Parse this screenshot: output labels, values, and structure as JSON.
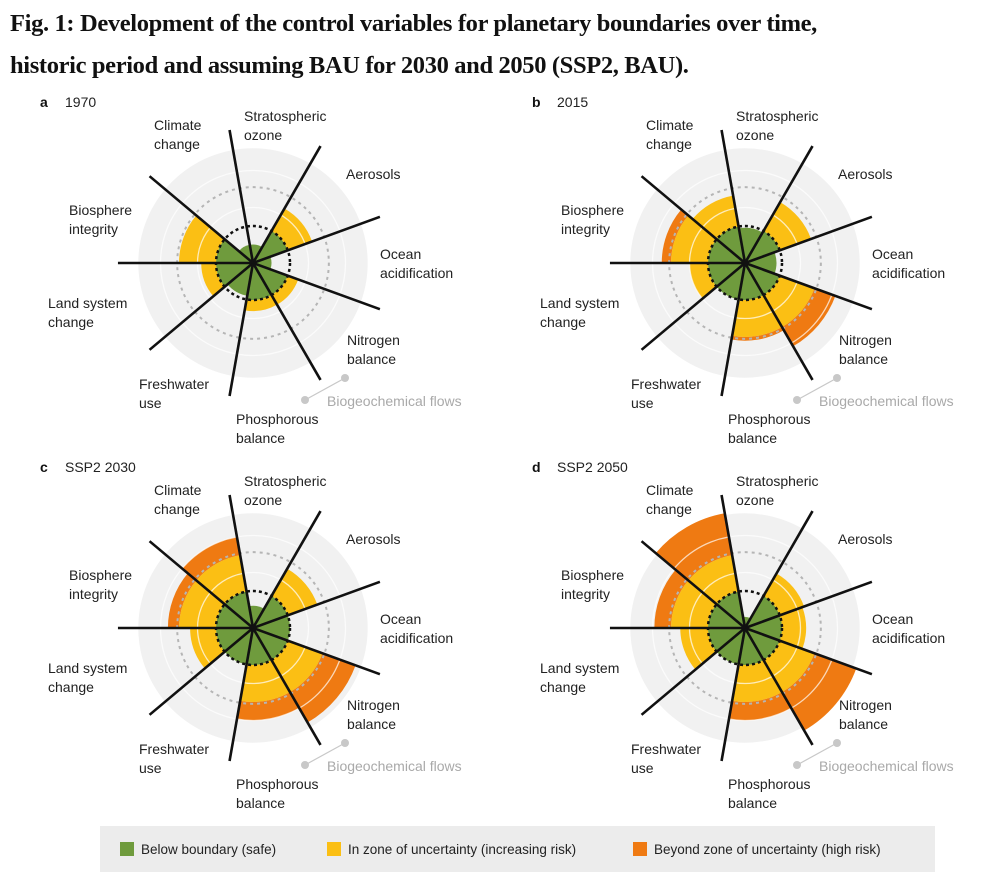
{
  "title": {
    "line1": "Fig. 1: Development of the control variables for planetary boundaries over time,",
    "line2": "historic period and assuming BAU for 2030 and 2050 (SSP2, BAU)."
  },
  "colors": {
    "safe": "#6f9b3d",
    "uncertainty": "#fbbf14",
    "high_risk": "#ef7a12",
    "background_disk": "#f1f1f1"
  },
  "legend": [
    {
      "label": "Below boundary (safe)",
      "color": "#6f9b3d"
    },
    {
      "label": "In zone of uncertainty (increasing risk)",
      "color": "#fbbf14"
    },
    {
      "label": "Beyond zone of uncertainty (high risk)",
      "color": "#ef7a12"
    }
  ],
  "group_label": "Biogeochemical flows",
  "categories": [
    [
      "Stratospheric",
      "ozone"
    ],
    [
      "Aerosols"
    ],
    [
      "Ocean",
      "acidification"
    ],
    [
      "Nitrogen",
      "balance"
    ],
    [
      "Phosphorous",
      "balance"
    ],
    [
      "Freshwater",
      "use"
    ],
    [
      "Land system",
      "change"
    ],
    [
      "Biosphere",
      "integrity"
    ],
    [
      "Climate",
      "change"
    ]
  ],
  "chart_data": [
    {
      "type": "polar-bar",
      "panel": "a",
      "title": "1970",
      "values": [
        0.5,
        1.7,
        0.5,
        1.3,
        1.3,
        0.9,
        1.4,
        2.0,
        0.5
      ]
    },
    {
      "type": "polar-bar",
      "panel": "b",
      "title": "2015",
      "values": [
        0.95,
        1.9,
        0.85,
        2.6,
        2.1,
        1.0,
        1.5,
        2.25,
        1.85
      ]
    },
    {
      "type": "polar-bar",
      "panel": "c",
      "title": "SSP2 2030",
      "values": [
        0.6,
        1.85,
        1.0,
        2.95,
        2.5,
        1.0,
        1.7,
        2.3,
        2.5
      ]
    },
    {
      "type": "polar-bar",
      "panel": "d",
      "title": "SSP2 2050",
      "values": [
        0.3,
        1.7,
        1.65,
        3.2,
        2.5,
        1.0,
        1.75,
        2.45,
        3.15
      ]
    }
  ]
}
